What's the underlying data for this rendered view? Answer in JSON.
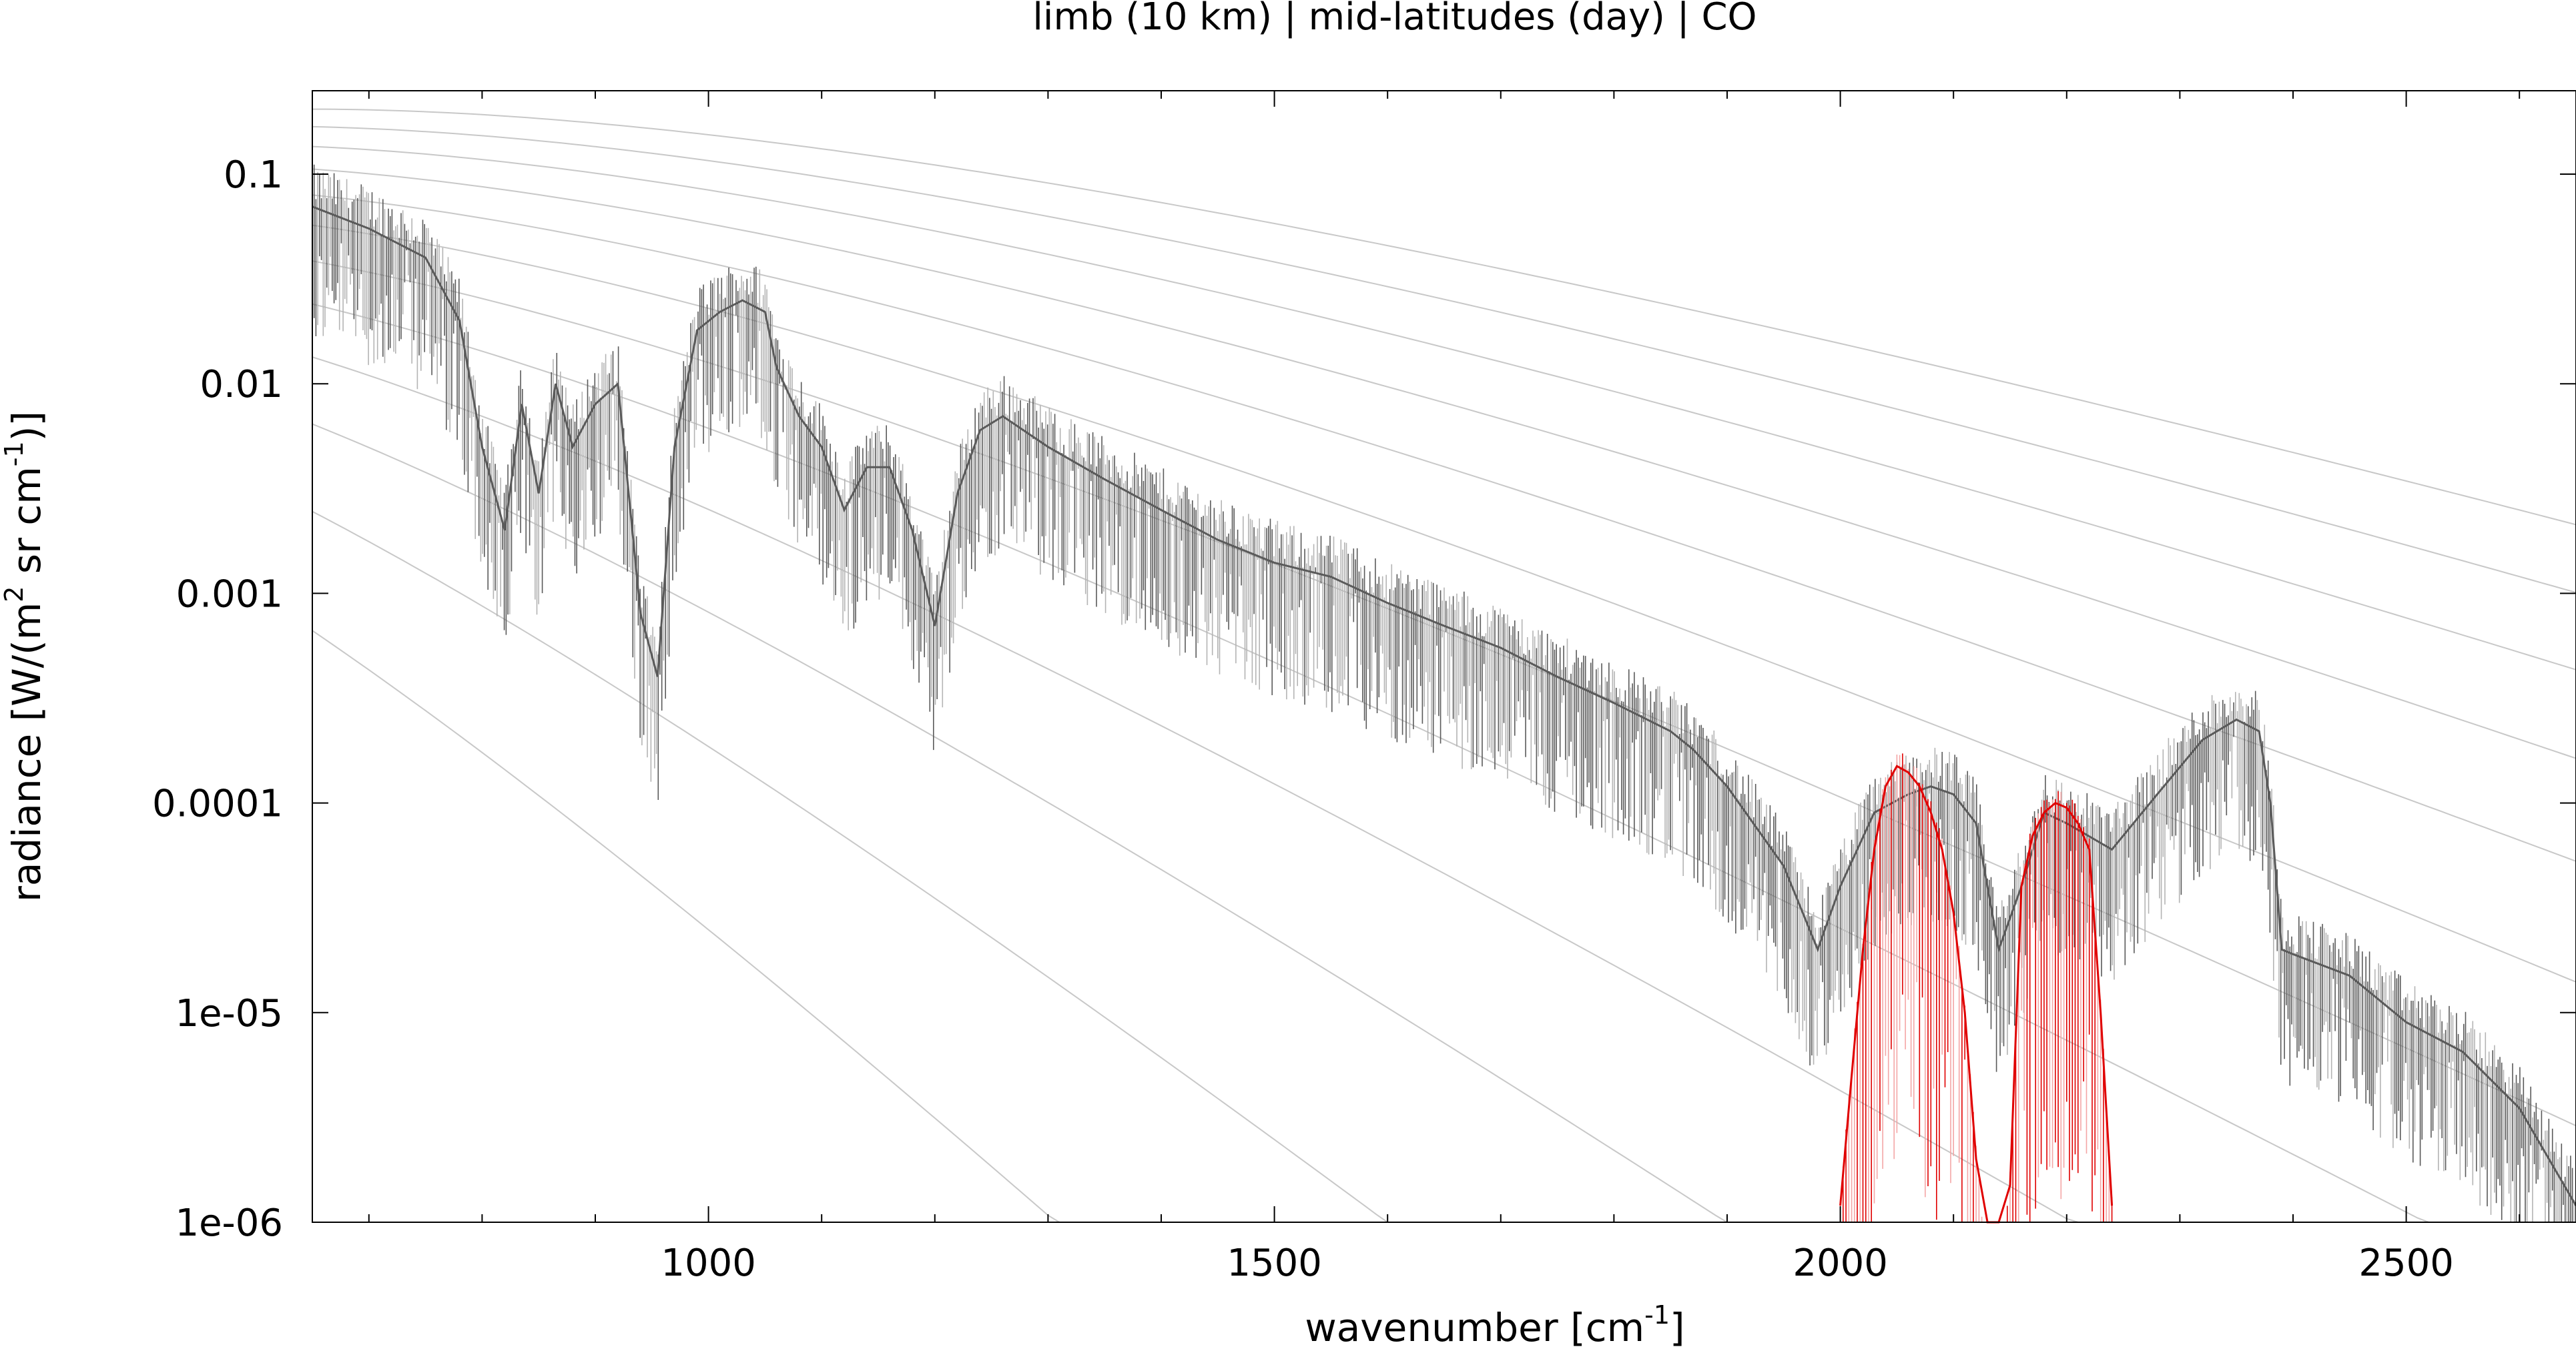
{
  "chart_data": {
    "type": "line",
    "title": "limb (10 km) | mid-latitudes (day) | CO",
    "xlabel": "wavenumber [cm",
    "xlabel_sup": "-1",
    "xlabel_end": "]",
    "ylabel": "radiance [W/(m",
    "ylabel_sup1": "2",
    "ylabel_mid": " sr cm",
    "ylabel_sup2": "-1",
    "ylabel_end": ")]",
    "xlim": [
      650,
      2650
    ],
    "ylim": [
      1e-06,
      0.25
    ],
    "yscale": "log",
    "x_ticks": [
      1000,
      1500,
      2000,
      2500
    ],
    "x_tick_labels": [
      "1000",
      "1500",
      "2000",
      "2500"
    ],
    "y_ticks": [
      0.1,
      0.01,
      0.001,
      0.0001,
      1e-05,
      1e-06
    ],
    "y_tick_labels": [
      "0.1",
      "0.01",
      "0.001",
      "0.0001",
      "1e-05",
      "1e-06"
    ],
    "grid": false,
    "legend": "none",
    "colors": {
      "total": "#5a5a5a",
      "contribution": "#b4b4b4",
      "target": "#e00000",
      "target_light": "#f4a6a6",
      "planck": "#c8c8c8"
    },
    "planck_temperatures_K": [
      330,
      310,
      290,
      270,
      250,
      230,
      210,
      190,
      170,
      150,
      130,
      110
    ],
    "series": [
      {
        "key": "total",
        "x": [
          650,
          700,
          750,
          780,
          800,
          820,
          835,
          850,
          865,
          880,
          900,
          920,
          940,
          955,
          970,
          990,
          1010,
          1030,
          1050,
          1060,
          1080,
          1100,
          1120,
          1140,
          1160,
          1180,
          1200,
          1220,
          1240,
          1260,
          1300,
          1350,
          1400,
          1450,
          1500,
          1550,
          1600,
          1650,
          1700,
          1750,
          1800,
          1850,
          1870,
          1900,
          1950,
          1980,
          2000,
          2030,
          2060,
          2080,
          2100,
          2120,
          2140,
          2160,
          2180,
          2200,
          2240,
          2280,
          2320,
          2350,
          2370,
          2380,
          2390,
          2400,
          2450,
          2500,
          2550,
          2600,
          2650
        ],
        "y": [
          0.07,
          0.055,
          0.04,
          0.02,
          0.005,
          0.002,
          0.008,
          0.003,
          0.01,
          0.005,
          0.008,
          0.01,
          0.0008,
          0.0004,
          0.005,
          0.018,
          0.022,
          0.025,
          0.022,
          0.012,
          0.007,
          0.005,
          0.0025,
          0.004,
          0.004,
          0.002,
          0.0007,
          0.003,
          0.006,
          0.007,
          0.005,
          0.0035,
          0.0025,
          0.0018,
          0.0014,
          0.0012,
          0.0009,
          0.0007,
          0.00055,
          0.0004,
          0.0003,
          0.00022,
          0.00018,
          0.00012,
          5e-05,
          2e-05,
          4e-05,
          9e-05,
          0.00011,
          0.00012,
          0.00011,
          8e-05,
          2e-05,
          4e-05,
          9e-05,
          8e-05,
          6e-05,
          0.00011,
          0.0002,
          0.00025,
          0.00022,
          0.0001,
          2e-05,
          1.9e-05,
          1.5e-05,
          9e-06,
          6.5e-06,
          3.5e-06,
          1.2e-06
        ]
      },
      {
        "key": "target",
        "x": [
          2000,
          2010,
          2020,
          2030,
          2040,
          2050,
          2060,
          2070,
          2080,
          2090,
          2100,
          2110,
          2120,
          2130,
          2140,
          2150,
          2160,
          2170,
          2180,
          2190,
          2200,
          2210,
          2220,
          2230,
          2240
        ],
        "y": [
          1.2e-06,
          5e-06,
          2e-05,
          6e-05,
          0.00012,
          0.00015,
          0.00014,
          0.00012,
          9e-05,
          6e-05,
          3e-05,
          1e-05,
          2e-06,
          5e-07,
          3e-07,
          1.5e-06,
          4e-05,
          7e-05,
          9e-05,
          0.0001,
          9.5e-05,
          8e-05,
          6e-05,
          1e-05,
          1.2e-06
        ]
      }
    ]
  }
}
